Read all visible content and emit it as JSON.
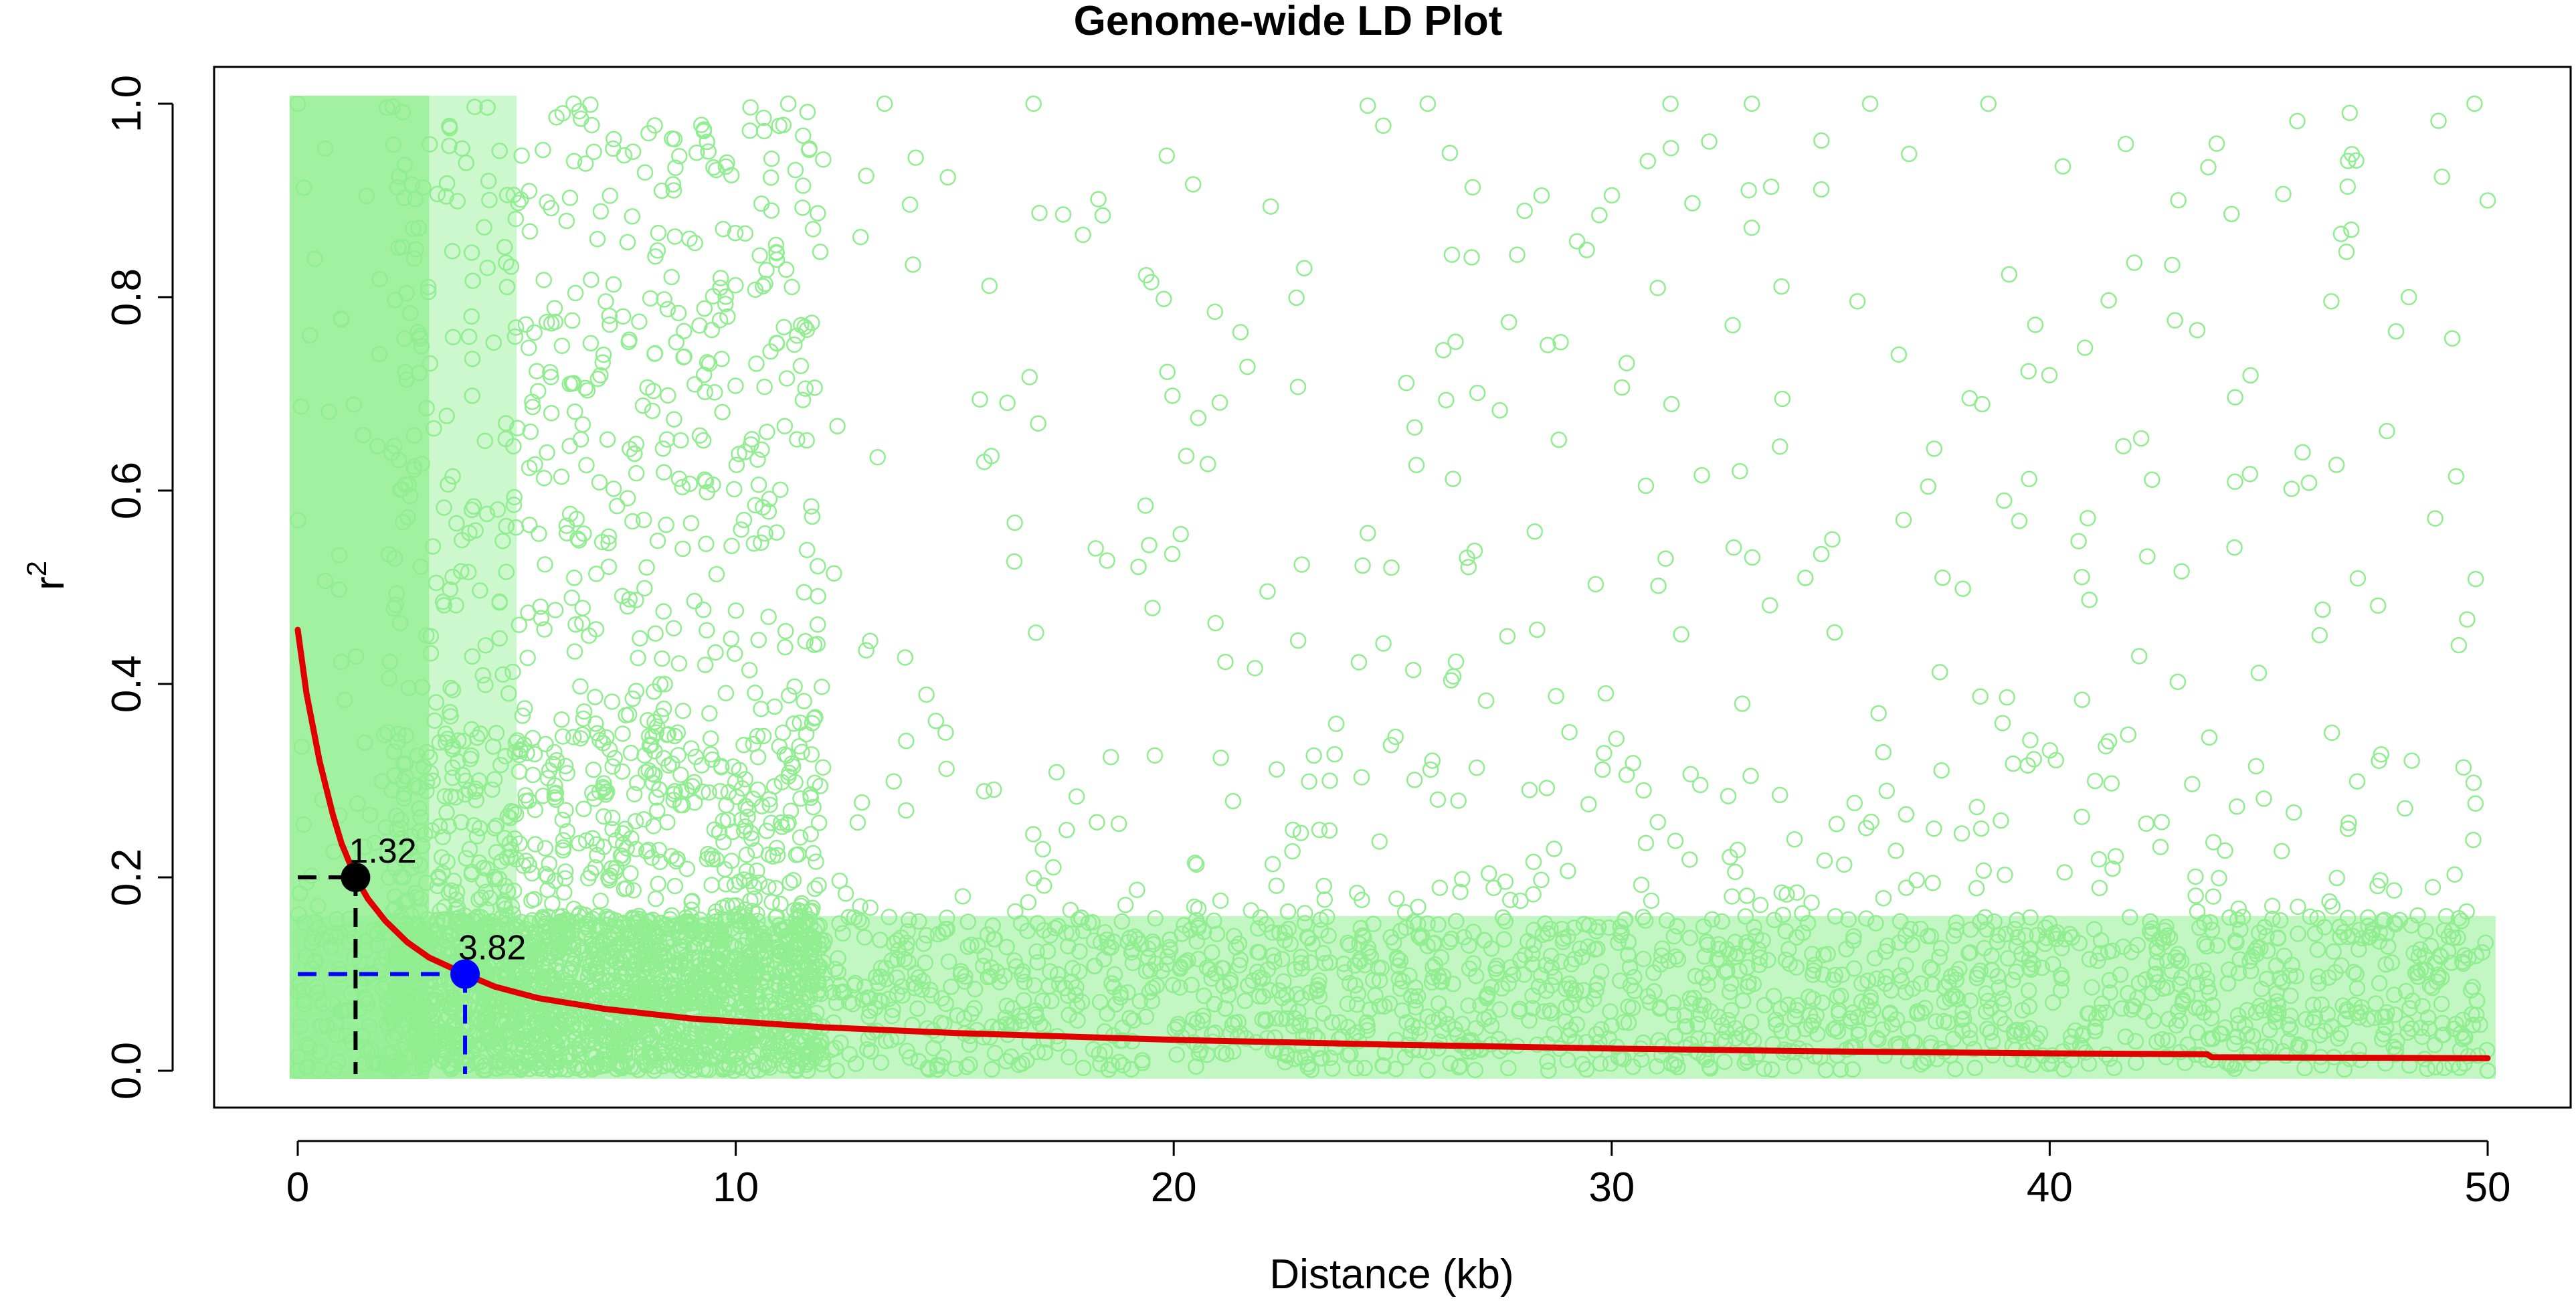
{
  "chart_data": {
    "type": "scatter",
    "title": "Genome-wide LD Plot",
    "xlabel": "Distance (kb)",
    "ylabel_base": "r",
    "ylabel_superscript": "2",
    "xlim": [
      0,
      50
    ],
    "ylim": [
      0,
      1
    ],
    "x_ticks": [
      0,
      10,
      20,
      30,
      40,
      50
    ],
    "x_tick_labels": [
      "0",
      "10",
      "20",
      "30",
      "40",
      "50"
    ],
    "y_ticks": [
      0,
      0.2,
      0.4,
      0.6,
      0.8,
      1
    ],
    "y_tick_labels": [
      "0.0",
      "0.2",
      "0.4",
      "0.6",
      "0.8",
      "1.0"
    ],
    "grid": false,
    "legend": false,
    "colors": {
      "points": "#90ee90",
      "decay_curve": "#e00000",
      "marker_r2_0_2": "#000000",
      "marker_r2_0_1": "#0000ff"
    },
    "series": [
      {
        "type": "scatter",
        "marker": "open-circle",
        "point_density_note": "dense solid band near 0 kb, sparser to 50 kb; most r2 below 0.15",
        "samples": [
          {
            "x": 0.0,
            "y": 0.0
          },
          {
            "x": 0.0,
            "y": 1.0
          },
          {
            "x": 6.3,
            "y": 1.0
          },
          {
            "x": 11.2,
            "y": 1.0
          },
          {
            "x": 13.4,
            "y": 1.0
          },
          {
            "x": 16.8,
            "y": 1.0
          },
          {
            "x": 25.8,
            "y": 1.0
          },
          {
            "x": 33.2,
            "y": 1.0
          },
          {
            "x": 35.9,
            "y": 1.0
          },
          {
            "x": 38.6,
            "y": 1.0
          },
          {
            "x": 49.7,
            "y": 1.0
          },
          {
            "x": 50.0,
            "y": 0.9
          },
          {
            "x": 48.2,
            "y": 0.8
          },
          {
            "x": 47.0,
            "y": 0.1
          },
          {
            "x": 50.0,
            "y": 0.0
          }
        ]
      },
      {
        "type": "line",
        "points": [
          {
            "x": 0.0,
            "y": 0.456
          },
          {
            "x": 0.2,
            "y": 0.39
          },
          {
            "x": 0.5,
            "y": 0.32
          },
          {
            "x": 0.8,
            "y": 0.265
          },
          {
            "x": 1.0,
            "y": 0.235
          },
          {
            "x": 1.32,
            "y": 0.2
          },
          {
            "x": 1.6,
            "y": 0.178
          },
          {
            "x": 2.0,
            "y": 0.155
          },
          {
            "x": 2.5,
            "y": 0.133
          },
          {
            "x": 3.0,
            "y": 0.117
          },
          {
            "x": 3.82,
            "y": 0.1
          },
          {
            "x": 4.5,
            "y": 0.087
          },
          {
            "x": 5.5,
            "y": 0.075
          },
          {
            "x": 7.0,
            "y": 0.064
          },
          {
            "x": 9.0,
            "y": 0.054
          },
          {
            "x": 12.0,
            "y": 0.045
          },
          {
            "x": 15.0,
            "y": 0.039
          },
          {
            "x": 20.0,
            "y": 0.032
          },
          {
            "x": 25.0,
            "y": 0.027
          },
          {
            "x": 30.0,
            "y": 0.023
          },
          {
            "x": 35.0,
            "y": 0.02
          },
          {
            "x": 40.0,
            "y": 0.018
          },
          {
            "x": 43.6,
            "y": 0.017
          },
          {
            "x": 43.7,
            "y": 0.014
          },
          {
            "x": 50.0,
            "y": 0.013
          }
        ]
      }
    ],
    "annotations": [
      {
        "x": 1.32,
        "y": 0.2,
        "label": "1.32",
        "color_key": "marker_r2_0_2"
      },
      {
        "x": 3.82,
        "y": 0.1,
        "label": "3.82",
        "color_key": "marker_r2_0_1"
      }
    ]
  }
}
